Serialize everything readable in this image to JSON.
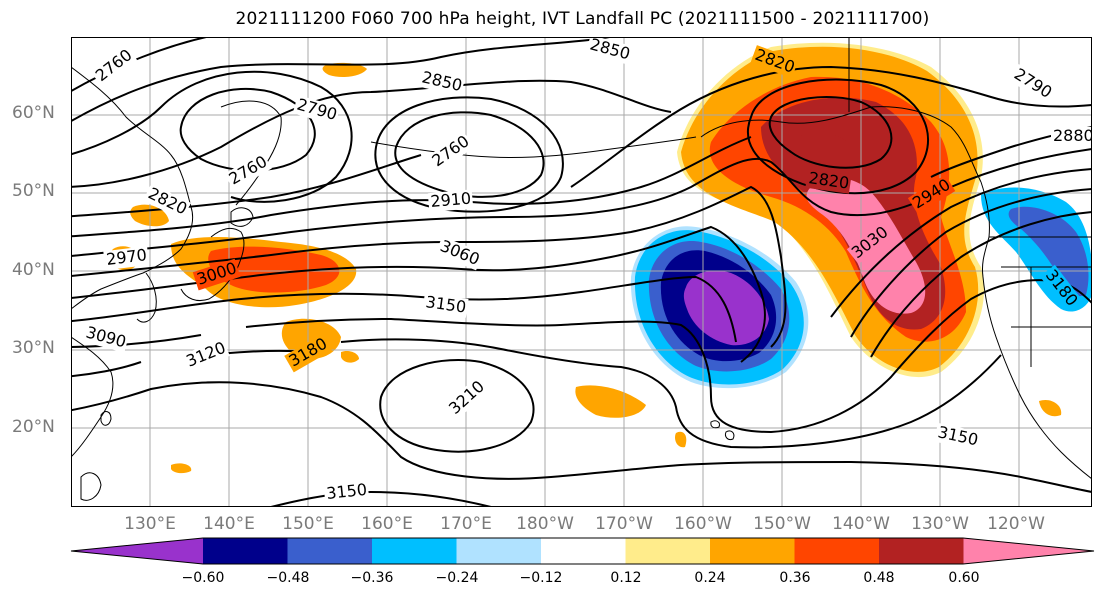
{
  "title": "2021111200 F060 700 hPa height, IVT Landfall PC (2021111500 - 2021111700)",
  "lat_labels": [
    "60°N",
    "50°N",
    "40°N",
    "30°N",
    "20°N"
  ],
  "lon_labels": [
    "130°E",
    "140°E",
    "150°E",
    "160°E",
    "170°E",
    "180°W",
    "170°W",
    "160°W",
    "150°W",
    "140°W",
    "130°W",
    "120°W"
  ],
  "contour_labels": [
    "2760",
    "2850",
    "2820",
    "2790",
    "2850",
    "2790",
    "2760",
    "2760",
    "2880",
    "2820",
    "2910",
    "2820",
    "2940",
    "2970",
    "3000",
    "3060",
    "3030",
    "3150",
    "3180",
    "3090",
    "3120",
    "3180",
    "3210",
    "3150",
    "3150"
  ],
  "colorbar": {
    "ticks": [
      "−0.60",
      "−0.48",
      "−0.36",
      "−0.24",
      "−0.12",
      "0.12",
      "0.24",
      "0.36",
      "0.48",
      "0.60"
    ],
    "colors": [
      "#9932cc",
      "#00008b",
      "#3a5fcd",
      "#00bfff",
      "#b0e2ff",
      "#ffffff",
      "#ffec8b",
      "#ffa500",
      "#ff4500",
      "#b22222",
      "#ff82ab"
    ]
  },
  "colors": {
    "contour": "#000000",
    "grid": "#a9a9a9",
    "axis_label": "#7a7a7a"
  }
}
